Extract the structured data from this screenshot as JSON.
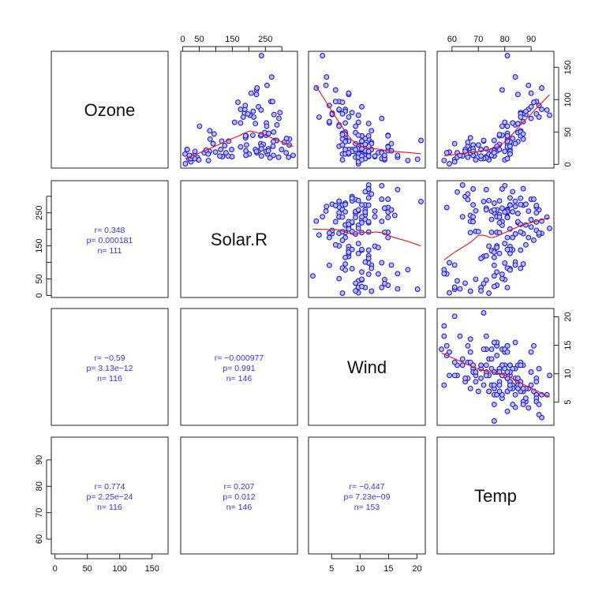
{
  "chart_data": {
    "type": "scatter",
    "layout": "pairs-matrix",
    "variables": [
      "Ozone",
      "Solar.R",
      "Wind",
      "Temp"
    ],
    "upper_panels": "scatter with lowess smoother",
    "lower_panels": "correlation statistics",
    "colors": {
      "points_stroke": "#1a1aff",
      "points_fill": "#c0c0cc",
      "smoother": "#ee1111",
      "stats_text": "#3333ee"
    },
    "axis_ticks": {
      "Ozone": {
        "ticks": [
          0,
          50,
          100,
          150
        ],
        "labels": [
          "0",
          "50",
          "100",
          "150"
        ]
      },
      "Solar.R": {
        "ticks": [
          0,
          50,
          100,
          150,
          200,
          250,
          300
        ],
        "labels": [
          "0",
          "50",
          "",
          "150",
          "",
          "250",
          ""
        ]
      },
      "Wind": {
        "ticks": [
          5,
          10,
          15,
          20
        ],
        "labels": [
          "5",
          "10",
          "15",
          "20"
        ]
      },
      "Temp": {
        "ticks": [
          60,
          70,
          80,
          90
        ],
        "labels": [
          "60",
          "70",
          "80",
          "90"
        ]
      }
    },
    "correlations": [
      {
        "row": "Solar.R",
        "col": "Ozone",
        "r": "r= 0.348",
        "p": "p= 0.000181",
        "n": "n= 111"
      },
      {
        "row": "Wind",
        "col": "Ozone",
        "r": "r= −0.59",
        "p": "p= 3.13e−12",
        "n": "n= 116"
      },
      {
        "row": "Wind",
        "col": "Solar.R",
        "r": "r= −0.000977",
        "p": "p= 0.991",
        "n": "n= 146"
      },
      {
        "row": "Temp",
        "col": "Ozone",
        "r": "r= 0.774",
        "p": "p= 2.25e−24",
        "n": "n= 116"
      },
      {
        "row": "Temp",
        "col": "Solar.R",
        "r": "r= 0.207",
        "p": "p= 0.012",
        "n": "n= 146"
      },
      {
        "row": "Temp",
        "col": "Wind",
        "r": "r= −0.447",
        "p": "p= 7.23e−09",
        "n": "n= 153"
      }
    ],
    "data": {
      "Ozone": [
        41,
        36,
        12,
        18,
        null,
        28,
        23,
        19,
        8,
        null,
        7,
        16,
        11,
        14,
        18,
        14,
        34,
        6,
        30,
        11,
        1,
        11,
        4,
        32,
        null,
        null,
        null,
        23,
        45,
        115,
        37,
        null,
        null,
        null,
        null,
        null,
        null,
        29,
        null,
        71,
        39,
        null,
        null,
        23,
        null,
        null,
        21,
        37,
        20,
        12,
        13,
        null,
        null,
        null,
        null,
        null,
        null,
        null,
        null,
        null,
        null,
        135,
        49,
        32,
        null,
        64,
        40,
        77,
        97,
        97,
        85,
        null,
        10,
        27,
        null,
        7,
        48,
        35,
        61,
        79,
        63,
        16,
        null,
        null,
        80,
        108,
        20,
        52,
        82,
        50,
        64,
        59,
        39,
        9,
        16,
        78,
        35,
        66,
        122,
        89,
        110,
        null,
        null,
        44,
        28,
        65,
        null,
        22,
        59,
        23,
        31,
        44,
        21,
        9,
        null,
        45,
        168,
        73,
        null,
        76,
        118,
        84,
        85,
        96,
        78,
        73,
        91,
        47,
        32,
        20,
        23,
        21,
        24,
        44,
        21,
        28,
        9,
        13,
        46,
        18,
        13,
        24,
        16,
        13,
        23,
        36,
        7,
        14,
        30,
        null,
        14,
        18,
        20
      ],
      "Solar.R": [
        190,
        118,
        149,
        313,
        null,
        null,
        299,
        99,
        19,
        194,
        null,
        256,
        290,
        274,
        65,
        334,
        307,
        78,
        322,
        44,
        8,
        320,
        25,
        92,
        66,
        266,
        null,
        13,
        252,
        223,
        279,
        286,
        287,
        242,
        186,
        220,
        264,
        127,
        273,
        291,
        323,
        259,
        250,
        148,
        332,
        322,
        191,
        284,
        37,
        120,
        137,
        150,
        59,
        91,
        250,
        135,
        127,
        47,
        98,
        31,
        138,
        269,
        248,
        236,
        101,
        175,
        314,
        276,
        267,
        272,
        175,
        139,
        264,
        175,
        291,
        48,
        260,
        274,
        285,
        187,
        220,
        7,
        258,
        295,
        294,
        223,
        81,
        82,
        213,
        275,
        253,
        254,
        83,
        24,
        77,
        null,
        null,
        null,
        255,
        229,
        207,
        222,
        137,
        192,
        273,
        157,
        64,
        71,
        51,
        115,
        244,
        190,
        259,
        36,
        255,
        212,
        238,
        215,
        153,
        203,
        225,
        237,
        188,
        167,
        197,
        183,
        189,
        95,
        92,
        252,
        220,
        230,
        259,
        236,
        259,
        238,
        24,
        112,
        237,
        224,
        27,
        238,
        201,
        238,
        14,
        139,
        49,
        20,
        193,
        145,
        191,
        131,
        223
      ],
      "Wind": [
        7.4,
        8,
        12.6,
        11.5,
        14.3,
        14.9,
        8.6,
        13.8,
        20.1,
        8.6,
        6.9,
        9.7,
        9.2,
        10.9,
        13.2,
        11.5,
        12,
        18.4,
        11.5,
        9.7,
        9.7,
        16.6,
        9.7,
        12,
        16.6,
        14.9,
        8,
        12,
        14.9,
        5.7,
        7.4,
        8.6,
        9.7,
        16.1,
        9.2,
        8.6,
        14.3,
        9.7,
        6.9,
        13.8,
        11.5,
        10.9,
        9.2,
        8,
        13.8,
        11.5,
        14.9,
        20.7,
        9.2,
        11.5,
        10.3,
        6.3,
        1.7,
        4.6,
        6.3,
        8,
        8,
        10.3,
        11.5,
        14.9,
        8,
        4.1,
        9.2,
        9.2,
        10.9,
        4.6,
        10.9,
        5.1,
        6.3,
        5.7,
        7.4,
        8.6,
        14.3,
        14.9,
        14.9,
        14.3,
        6.9,
        10.3,
        6.3,
        5.1,
        11.5,
        6.9,
        9.7,
        11.5,
        8.6,
        8,
        8.6,
        12,
        7.4,
        7.4,
        7.4,
        9.2,
        6.9,
        13.8,
        7.4,
        6.9,
        7.4,
        4.6,
        4,
        10.3,
        8,
        8.6,
        11.5,
        11.5,
        11.5,
        9.7,
        11.5,
        10.3,
        6.3,
        7.4,
        10.9,
        10.3,
        15.5,
        14.3,
        12.6,
        9.7,
        3.4,
        8,
        5.7,
        9.7,
        2.3,
        6.3,
        6.3,
        6.9,
        5.1,
        2.8,
        4.6,
        7.4,
        15.5,
        10.9,
        10.3,
        10.9,
        9.7,
        14.9,
        15.5,
        6.3,
        10.9,
        11.5,
        6.9,
        13.8,
        10.3,
        10.3,
        8,
        12.6,
        9.2,
        10.3,
        10.3,
        16.6,
        6.9,
        13.2,
        14.3,
        8,
        11.5
      ],
      "Temp": [
        67,
        72,
        74,
        62,
        56,
        66,
        65,
        59,
        61,
        69,
        74,
        69,
        66,
        68,
        58,
        64,
        66,
        57,
        68,
        62,
        59,
        73,
        61,
        61,
        57,
        58,
        57,
        67,
        81,
        79,
        76,
        78,
        74,
        67,
        84,
        85,
        79,
        82,
        87,
        90,
        87,
        93,
        92,
        82,
        80,
        79,
        77,
        72,
        65,
        73,
        76,
        77,
        76,
        76,
        76,
        75,
        78,
        73,
        80,
        77,
        83,
        84,
        85,
        81,
        84,
        83,
        83,
        88,
        92,
        92,
        89,
        82,
        73,
        81,
        91,
        80,
        81,
        82,
        84,
        87,
        85,
        74,
        81,
        82,
        86,
        85,
        82,
        86,
        88,
        86,
        83,
        81,
        81,
        81,
        82,
        86,
        85,
        87,
        89,
        90,
        90,
        92,
        86,
        86,
        82,
        80,
        79,
        77,
        79,
        76,
        78,
        78,
        77,
        72,
        75,
        79,
        81,
        86,
        88,
        97,
        94,
        96,
        94,
        91,
        92,
        93,
        93,
        87,
        84,
        80,
        78,
        75,
        73,
        81,
        76,
        77,
        71,
        71,
        78,
        67,
        76,
        68,
        82,
        64,
        71,
        81,
        69,
        63,
        70,
        77,
        75,
        76,
        68
      ]
    }
  }
}
